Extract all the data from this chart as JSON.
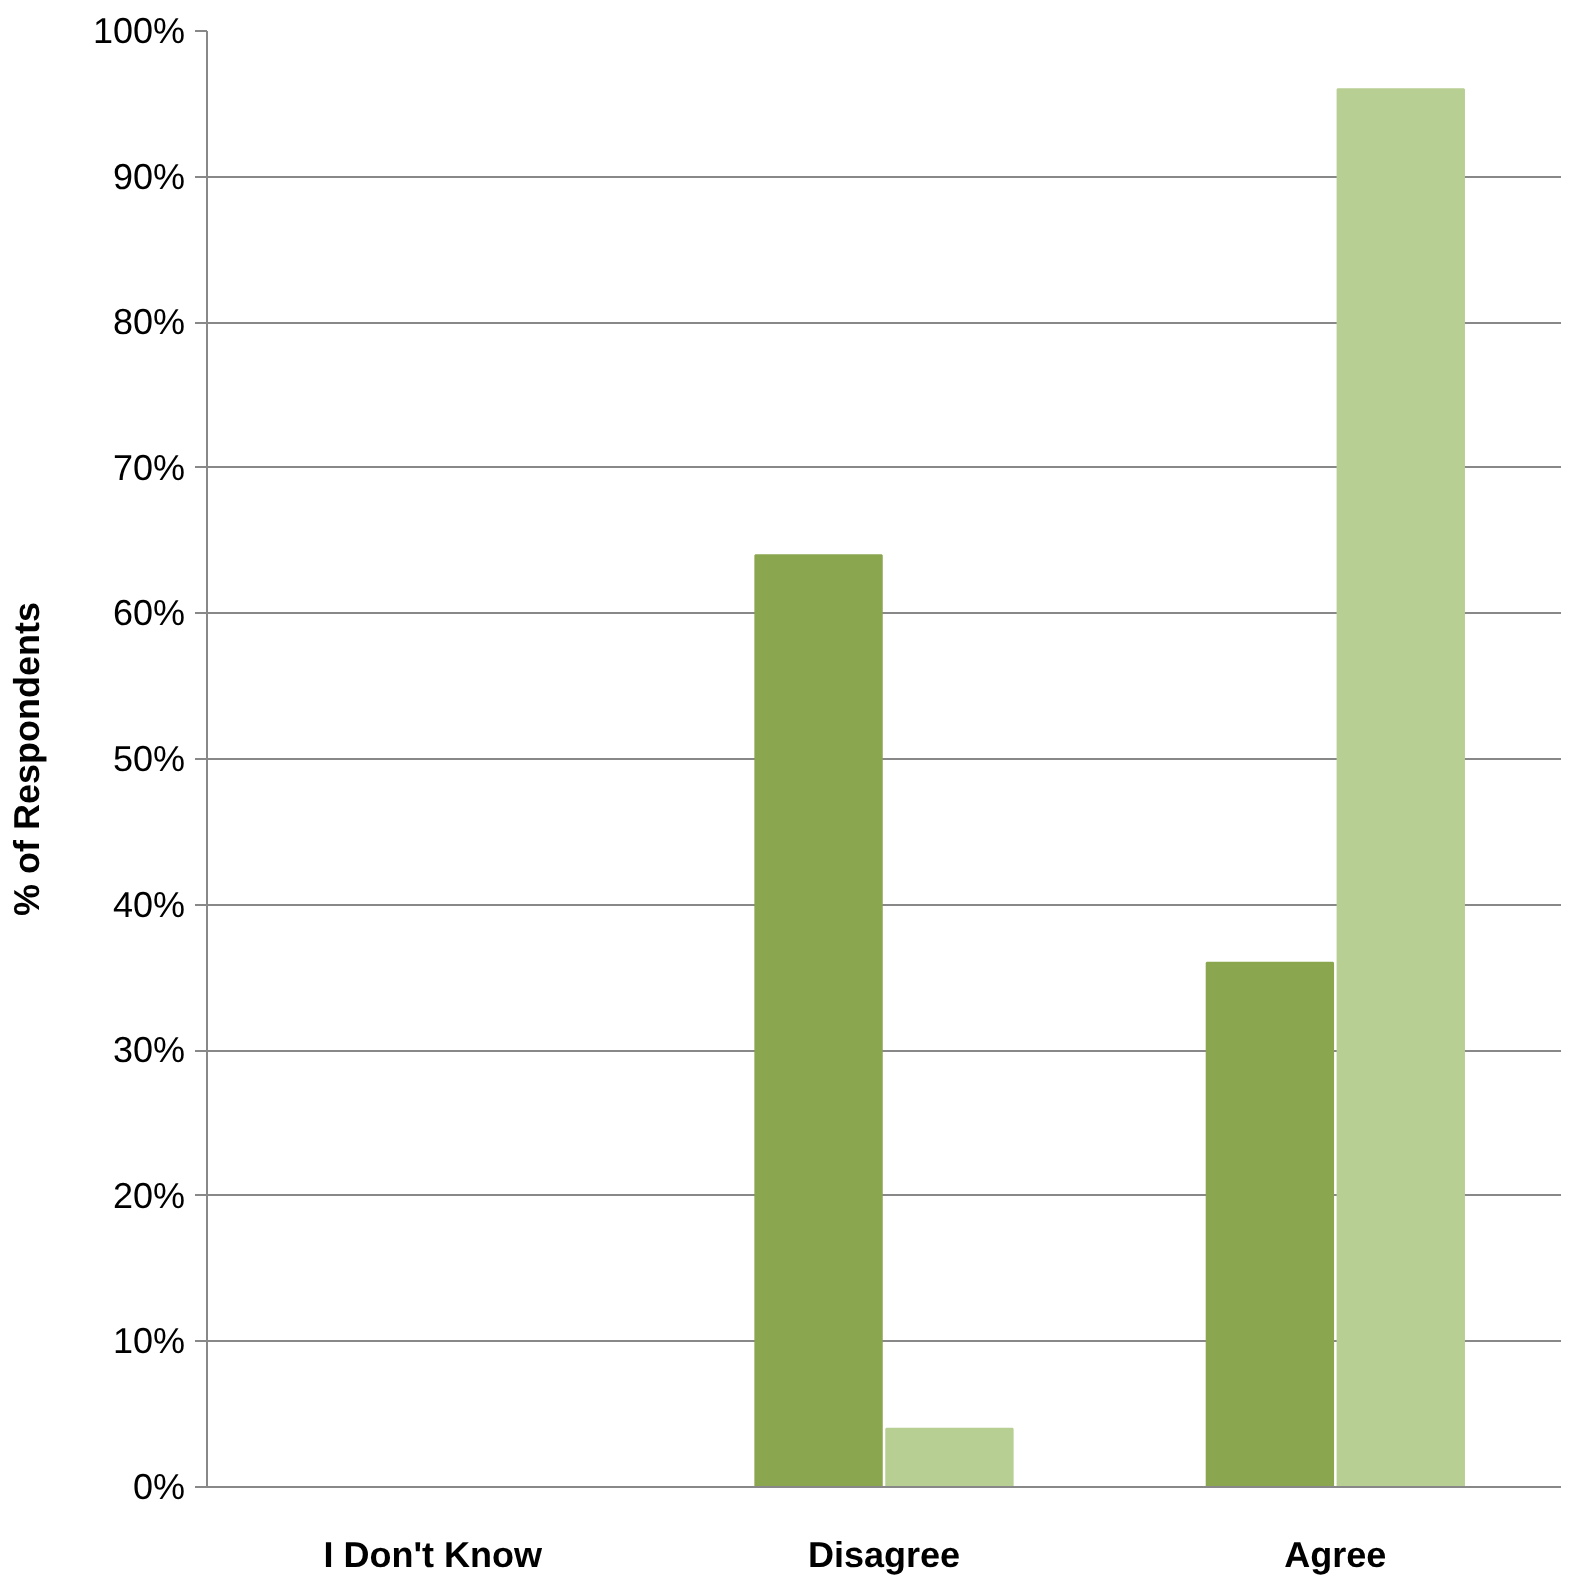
{
  "chart_data": {
    "type": "bar",
    "ylabel": "% of Respondents",
    "categories": [
      "I Don't Know",
      "Disagree",
      "Agree"
    ],
    "series": [
      {
        "color": "#8aa64e",
        "values": [
          0,
          64,
          36
        ]
      },
      {
        "color": "#b8cf94",
        "values": [
          0,
          4,
          96
        ]
      }
    ],
    "ylim": [
      0,
      100
    ],
    "yticks": [
      {
        "value": 0,
        "label": "0%"
      },
      {
        "value": 10,
        "label": "10%"
      },
      {
        "value": 20,
        "label": "20%"
      },
      {
        "value": 30,
        "label": "30%"
      },
      {
        "value": 40,
        "label": "40%"
      },
      {
        "value": 50,
        "label": "50%"
      },
      {
        "value": 60,
        "label": "60%"
      },
      {
        "value": 70,
        "label": "70%"
      },
      {
        "value": 80,
        "label": "80%"
      },
      {
        "value": 90,
        "label": "90%"
      },
      {
        "value": 100,
        "label": "100%"
      }
    ],
    "grid": "y"
  }
}
